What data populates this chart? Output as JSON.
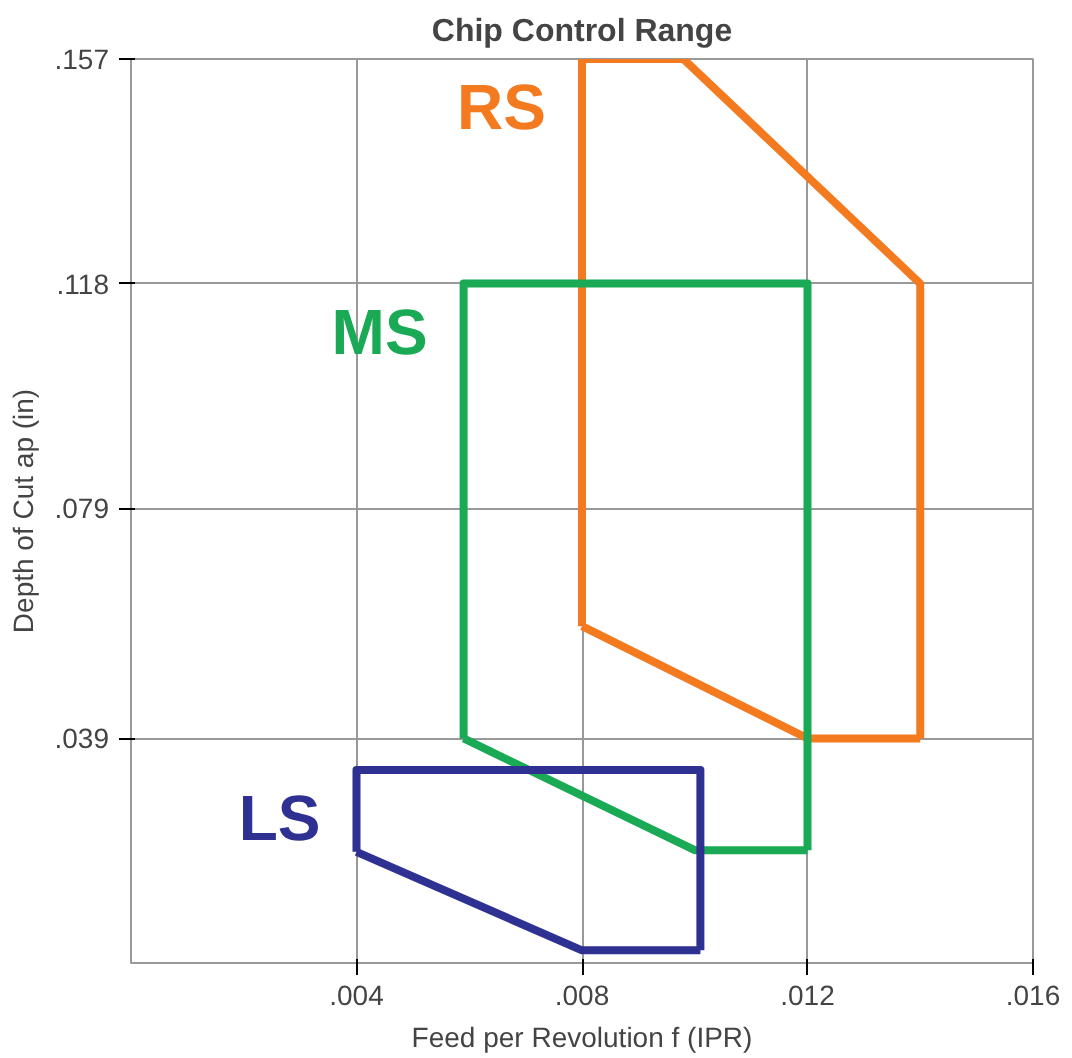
{
  "chart_data": {
    "type": "line",
    "title": "Chip Control Range",
    "xlabel": "Feed per Revolution f (IPR)",
    "ylabel": "Depth of Cut ap (in)",
    "xlim": [
      0,
      0.016
    ],
    "ylim": [
      0,
      0.157
    ],
    "xticks": [
      {
        "value": 0.004,
        "label": ".004"
      },
      {
        "value": 0.008,
        "label": ".008"
      },
      {
        "value": 0.012,
        "label": ".012"
      },
      {
        "value": 0.016,
        "label": ".016"
      }
    ],
    "yticks": [
      {
        "value": 0.039,
        "label": ".039"
      },
      {
        "value": 0.079,
        "label": ".079"
      },
      {
        "value": 0.118,
        "label": ".118"
      },
      {
        "value": 0.157,
        "label": ".157"
      }
    ],
    "grid": true,
    "legend": false,
    "series": [
      {
        "name": "RS",
        "color": "#f47a20",
        "x": [
          0.008,
          0.008,
          0.0098,
          0.014,
          0.014
        ],
        "values": [
          0.0585,
          0.157,
          0.157,
          0.118,
          0.039
        ]
      },
      {
        "color": "#f47a20",
        "x": [
          0.008,
          0.012,
          0.014
        ],
        "values": [
          0.0585,
          0.039,
          0.039
        ]
      },
      {
        "name": "MS",
        "color": "#1aaa55",
        "x": [
          0.0059,
          0.0059,
          0.012,
          0.012
        ],
        "values": [
          0.039,
          0.118,
          0.118,
          0.0196
        ]
      },
      {
        "color": "#1aaa55",
        "x": [
          0.0059,
          0.01,
          0.012
        ],
        "values": [
          0.039,
          0.0196,
          0.0196
        ]
      },
      {
        "name": "LS",
        "color": "#2e3192",
        "x": [
          0.004,
          0.004,
          0.0101,
          0.0101
        ],
        "values": [
          0.0193,
          0.0335,
          0.0335,
          0.0022
        ]
      },
      {
        "color": "#2e3192",
        "x": [
          0.004,
          0.008,
          0.0101
        ],
        "values": [
          0.0193,
          0.0022,
          0.0022
        ]
      }
    ]
  }
}
